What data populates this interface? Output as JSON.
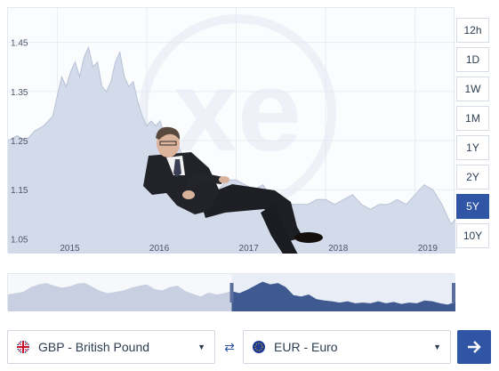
{
  "chart_data": {
    "type": "area",
    "y_ticks": [
      "1.45",
      "1.35",
      "1.25",
      "1.15",
      "1.05"
    ],
    "x_ticks": [
      "2015",
      "2016",
      "2017",
      "2018",
      "2019"
    ],
    "ylim": [
      1.02,
      1.52
    ],
    "xlim": [
      2014.45,
      2019.45
    ],
    "grid": true,
    "series": [
      {
        "x": [
          2014.45,
          2014.55,
          2014.65,
          2014.75,
          2014.85,
          2014.95,
          2015.0,
          2015.05,
          2015.1,
          2015.15,
          2015.2,
          2015.25,
          2015.3,
          2015.35,
          2015.4,
          2015.45,
          2015.5,
          2015.55,
          2015.6,
          2015.65,
          2015.7,
          2015.75,
          2015.8,
          2015.85,
          2015.9,
          2015.95,
          2016.0,
          2016.05,
          2016.1,
          2016.15,
          2016.2,
          2016.25,
          2016.3,
          2016.35,
          2016.4,
          2016.45,
          2016.5,
          2016.55,
          2016.6,
          2016.7,
          2016.8,
          2016.9,
          2017.0,
          2017.1,
          2017.2,
          2017.3,
          2017.4,
          2017.5,
          2017.6,
          2017.7,
          2017.8,
          2017.9,
          2018.0,
          2018.1,
          2018.2,
          2018.3,
          2018.4,
          2018.5,
          2018.6,
          2018.7,
          2018.8,
          2018.9,
          2019.0,
          2019.1,
          2019.2,
          2019.3,
          2019.35,
          2019.4,
          2019.45
        ],
        "y": [
          1.25,
          1.26,
          1.25,
          1.27,
          1.28,
          1.3,
          1.34,
          1.38,
          1.36,
          1.39,
          1.41,
          1.38,
          1.42,
          1.44,
          1.4,
          1.41,
          1.36,
          1.35,
          1.37,
          1.41,
          1.43,
          1.38,
          1.36,
          1.37,
          1.33,
          1.3,
          1.28,
          1.29,
          1.28,
          1.29,
          1.26,
          1.24,
          1.27,
          1.24,
          1.22,
          1.19,
          1.2,
          1.18,
          1.16,
          1.17,
          1.15,
          1.17,
          1.17,
          1.16,
          1.15,
          1.16,
          1.13,
          1.12,
          1.12,
          1.12,
          1.12,
          1.13,
          1.13,
          1.12,
          1.13,
          1.14,
          1.12,
          1.11,
          1.12,
          1.12,
          1.13,
          1.12,
          1.14,
          1.16,
          1.15,
          1.12,
          1.1,
          1.08,
          1.09
        ]
      }
    ]
  },
  "range_buttons": [
    {
      "label": "12h",
      "active": false
    },
    {
      "label": "1D",
      "active": false
    },
    {
      "label": "1W",
      "active": false
    },
    {
      "label": "1M",
      "active": false
    },
    {
      "label": "1Y",
      "active": false
    },
    {
      "label": "2Y",
      "active": false
    },
    {
      "label": "5Y",
      "active": true
    },
    {
      "label": "10Y",
      "active": false
    }
  ],
  "from_currency": {
    "label": "GBP - British Pound",
    "flag": "uk-flag-icon"
  },
  "to_currency": {
    "label": "EUR - Euro",
    "flag": "eu-flag-icon"
  },
  "controls": {
    "swap_icon": "swap-arrows-icon",
    "convert_icon": "right-arrow-icon"
  },
  "watermark": {
    "text": "xe"
  },
  "colors": {
    "area_fill": "#d3dbeb",
    "area_line": "#b8c2d6",
    "navigator_dark": "#3f5a90",
    "navigator_light": "#c7cfe0",
    "accent": "#2f55a4",
    "grid": "#e8ecf2"
  },
  "navigator": {
    "series": [
      1.25,
      1.27,
      1.29,
      1.36,
      1.4,
      1.42,
      1.38,
      1.35,
      1.37,
      1.41,
      1.42,
      1.36,
      1.3,
      1.27,
      1.29,
      1.31,
      1.35,
      1.38,
      1.4,
      1.33,
      1.31,
      1.36,
      1.38,
      1.3,
      1.26,
      1.22,
      1.28,
      1.25,
      1.27,
      1.3,
      1.27,
      1.32,
      1.38,
      1.44,
      1.4,
      1.42,
      1.36,
      1.24,
      1.22,
      1.25,
      1.18,
      1.16,
      1.15,
      1.13,
      1.15,
      1.12,
      1.13,
      1.12,
      1.15,
      1.12,
      1.14,
      1.11,
      1.13,
      1.12,
      1.16,
      1.15,
      1.12,
      1.1,
      1.14
    ],
    "selection_start": 0.5
  }
}
